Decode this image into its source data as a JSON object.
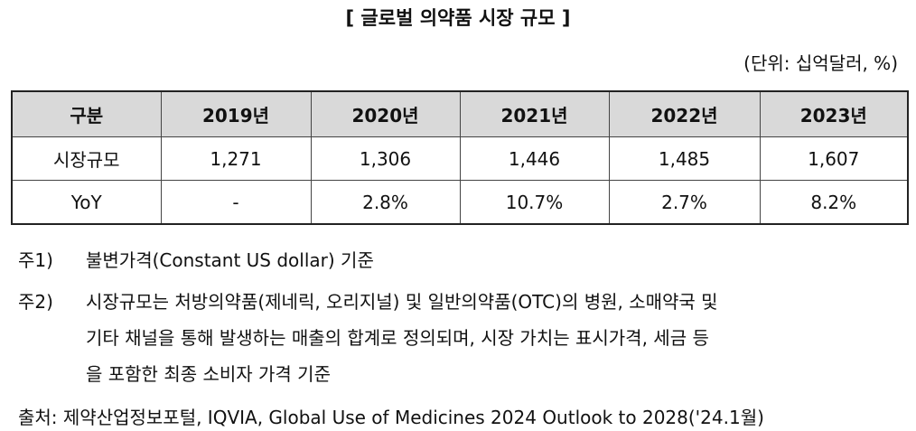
{
  "header": {
    "title": "[ 글로벌 의약품 시장 규모 ]",
    "unit": "(단위: 십억달러, %)"
  },
  "table": {
    "columns": [
      "구분",
      "2019년",
      "2020년",
      "2021년",
      "2022년",
      "2023년"
    ],
    "rows": [
      [
        "시장규모",
        "1,271",
        "1,306",
        "1,446",
        "1,485",
        "1,607"
      ],
      [
        "YoY",
        "-",
        "2.8%",
        "10.7%",
        "2.7%",
        "8.2%"
      ]
    ]
  },
  "notes": [
    {
      "label": "주1)",
      "lines": [
        "불변가격(Constant US dollar) 기준"
      ]
    },
    {
      "label": "주2)",
      "lines": [
        "시장규모는 처방의약품(제네릭, 오리지널) 및 일반의약품(OTC)의 병원, 소매약국 및",
        "기타 채널을 통해 발생하는 매출의 합계로 정의되며, 시장 가치는 표시가격, 세금 등",
        "을 포함한 최종 소비자 가격 기준"
      ]
    }
  ],
  "source": "출처: 제약산업정보포털, IQVIA, Global Use of Medicines 2024 Outlook to 2028('24.1월)"
}
